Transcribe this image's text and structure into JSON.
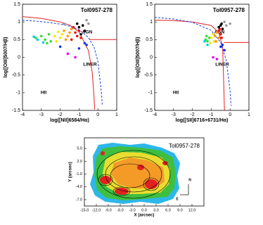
{
  "chart_data": [
    {
      "type": "scatter",
      "title": "Tol0957-278",
      "xlabel": "log([NII]6584/Hα)",
      "ylabel": "log([OIII]5007/Hβ)",
      "annotations": [
        "AGN",
        "LINER",
        "HII"
      ],
      "xlim": [
        -4,
        1
      ],
      "ylim": [
        -1.5,
        1.5
      ],
      "xticks": [
        -4,
        -3,
        -2,
        -1,
        0,
        1
      ],
      "yticks": [
        -1.5,
        -1,
        -0.5,
        0,
        0.5,
        1,
        1.5
      ],
      "series": [
        {
          "mode": "line",
          "color": "#e32020",
          "dash": false,
          "x": [
            -4,
            -3,
            -2,
            -1.5,
            -1,
            -0.5,
            -0.3,
            -0.2,
            -0.17
          ],
          "values": [
            1.15,
            1.1,
            1.0,
            0.91,
            0.72,
            0.19,
            -0.44,
            -1.14,
            -1.47
          ]
        },
        {
          "mode": "line",
          "color": "#e32020",
          "dash": false,
          "x": [
            -0.45,
            1
          ],
          "values": [
            0.5,
            0.5
          ]
        },
        {
          "mode": "line",
          "color": "#1a3fe0",
          "dash": true,
          "x": [
            -4,
            -3,
            -2,
            -1.5,
            -1,
            -0.5,
            -0.2,
            0,
            0.2,
            0.23
          ],
          "values": [
            1.05,
            1.01,
            0.94,
            0.88,
            0.78,
            0.56,
            0.28,
            -0.11,
            -1.07,
            -1.35
          ]
        },
        {
          "mode": "markers",
          "color": "#33dd33",
          "x": [
            -3.3,
            -3.0,
            -2.8,
            -2.6,
            -2.5,
            -2.7
          ],
          "values": [
            0.55,
            0.6,
            0.5,
            0.65,
            0.45,
            0.4
          ]
        },
        {
          "mode": "markers",
          "color": "#00ccdd",
          "x": [
            -3.2,
            -2.9,
            -3.4
          ],
          "values": [
            0.5,
            0.42,
            0.58
          ]
        },
        {
          "mode": "markers",
          "color": "#f2e600",
          "x": [
            -2.3,
            -2.1,
            -2.0,
            -2.2,
            -1.9
          ],
          "values": [
            0.6,
            0.72,
            0.55,
            0.45,
            0.65
          ]
        },
        {
          "mode": "markers",
          "color": "#ff9900",
          "x": [
            -1.8,
            -1.6,
            -1.7,
            -1.5,
            -1.4
          ],
          "values": [
            0.75,
            0.6,
            0.5,
            0.7,
            0.8
          ]
        },
        {
          "mode": "markers",
          "color": "#ee1111",
          "x": [
            -1.3,
            -1.2,
            -1.0,
            -1.1,
            -0.9,
            -1.4
          ],
          "values": [
            0.85,
            0.7,
            0.75,
            0.6,
            0.55,
            0.5
          ]
        },
        {
          "mode": "markers",
          "color": "#ee00ee",
          "x": [
            -1.6,
            -1.2
          ],
          "values": [
            0.1,
            0.0
          ]
        },
        {
          "mode": "markers",
          "color": "#1133ee",
          "x": [
            -2.0,
            -1.0,
            -0.7,
            -0.6
          ],
          "values": [
            0.3,
            0.25,
            0.4,
            0.35
          ]
        },
        {
          "mode": "markers",
          "color": "#000000",
          "x": [
            -1.0,
            -0.8,
            -0.7,
            -1.1,
            -0.9
          ],
          "values": [
            0.85,
            0.9,
            0.75,
            0.95,
            0.65
          ]
        },
        {
          "mode": "markers",
          "color": "#999999",
          "x": [
            -0.6,
            -0.5,
            -1.8
          ],
          "values": [
            1.05,
            0.95,
            0.95
          ]
        }
      ]
    },
    {
      "type": "scatter",
      "title": "Tol0957-278",
      "xlabel": "log([SII]6716+6731/Hα)",
      "ylabel": "log([OIII]5007/Hβ)",
      "annotations": [
        "AGN",
        "LINER",
        "HII"
      ],
      "xlim": [
        -4,
        1
      ],
      "ylim": [
        -1.5,
        1.5
      ],
      "xticks": [
        -4,
        -3,
        -2,
        -1,
        0,
        1
      ],
      "yticks": [
        -1.5,
        -1,
        -0.5,
        0,
        0.5,
        1,
        1.5
      ],
      "series": [
        {
          "mode": "line",
          "color": "#e32020",
          "dash": false,
          "x": [
            -4,
            -3,
            -2,
            -1,
            -0.6,
            -0.4,
            -0.35,
            -0.3
          ],
          "values": [
            1.05,
            1.04,
            1.0,
            0.9,
            0.7,
            0.3,
            -0.5,
            -1.5
          ]
        },
        {
          "mode": "line",
          "color": "#e32020",
          "dash": false,
          "x": [
            -0.32,
            1
          ],
          "values": [
            0.42,
            0.42
          ]
        },
        {
          "mode": "line",
          "color": "#1a3fe0",
          "dash": true,
          "x": [
            -4,
            -3,
            -2,
            -1,
            -0.5,
            -0.2,
            0,
            0.05
          ],
          "values": [
            1.13,
            1.08,
            0.99,
            0.76,
            0.42,
            -0.09,
            -0.95,
            -1.37
          ]
        },
        {
          "mode": "markers",
          "color": "#33dd33",
          "x": [
            -1.3,
            -1.2,
            -1.1,
            -1.25
          ],
          "values": [
            0.5,
            0.45,
            0.55,
            0.6
          ]
        },
        {
          "mode": "markers",
          "color": "#00ccdd",
          "x": [
            -1.35,
            -1.2
          ],
          "values": [
            0.45,
            0.35
          ]
        },
        {
          "mode": "markers",
          "color": "#f2e600",
          "x": [
            -1.0,
            -0.9,
            -1.05,
            -0.85
          ],
          "values": [
            0.55,
            0.65,
            0.4,
            0.45
          ]
        },
        {
          "mode": "markers",
          "color": "#ff9900",
          "x": [
            -0.8,
            -0.7,
            -0.75,
            -0.6
          ],
          "values": [
            0.6,
            0.7,
            0.45,
            0.55
          ]
        },
        {
          "mode": "markers",
          "color": "#ee1111",
          "x": [
            -0.6,
            -0.5,
            -0.45,
            -0.55
          ],
          "values": [
            0.75,
            0.65,
            0.55,
            0.8
          ]
        },
        {
          "mode": "markers",
          "color": "#ee00ee",
          "x": [
            -0.9,
            -0.7
          ],
          "values": [
            0.0,
            -0.05
          ]
        },
        {
          "mode": "markers",
          "color": "#1133ee",
          "x": [
            -0.5,
            -0.4,
            -0.3
          ],
          "values": [
            0.3,
            0.35,
            0.2
          ]
        },
        {
          "mode": "markers",
          "color": "#000000",
          "x": [
            -0.6,
            -0.5,
            -0.4,
            -0.45
          ],
          "values": [
            0.85,
            0.9,
            0.8,
            0.95
          ]
        },
        {
          "mode": "markers",
          "color": "#999999",
          "x": [
            -0.3,
            -0.2,
            0.0
          ],
          "values": [
            1.0,
            0.9,
            0.95
          ]
        }
      ]
    },
    {
      "type": "map",
      "title": "Tol0957-278",
      "xlabel": "X (arcsec)",
      "ylabel": "Y (arcsec)",
      "annotations": [
        "N",
        "E"
      ],
      "xlim": [
        -15,
        15
      ],
      "ylim": [
        -8.5,
        7.5
      ],
      "xticks": [
        {
          "value": -15,
          "label": "-15.0"
        },
        {
          "value": -12,
          "label": "-12.0"
        },
        {
          "value": -9,
          "label": "-9.0"
        },
        {
          "value": -6,
          "label": "-6.0"
        },
        {
          "value": -3,
          "label": "-3.0"
        },
        {
          "value": 0,
          "label": "0.0"
        },
        {
          "value": 3,
          "label": "3.0"
        },
        {
          "value": 6,
          "label": "6.0"
        },
        {
          "value": 9,
          "label": "9.0"
        },
        {
          "value": 12,
          "label": "12.0"
        }
      ],
      "yticks": [
        {
          "value": 5,
          "label": "5.0"
        },
        {
          "value": 2,
          "label": "2.0"
        },
        {
          "value": -1,
          "label": "-1.0"
        },
        {
          "value": -4,
          "label": "-4.0"
        },
        {
          "value": -7,
          "label": "-7.0"
        }
      ]
    }
  ]
}
